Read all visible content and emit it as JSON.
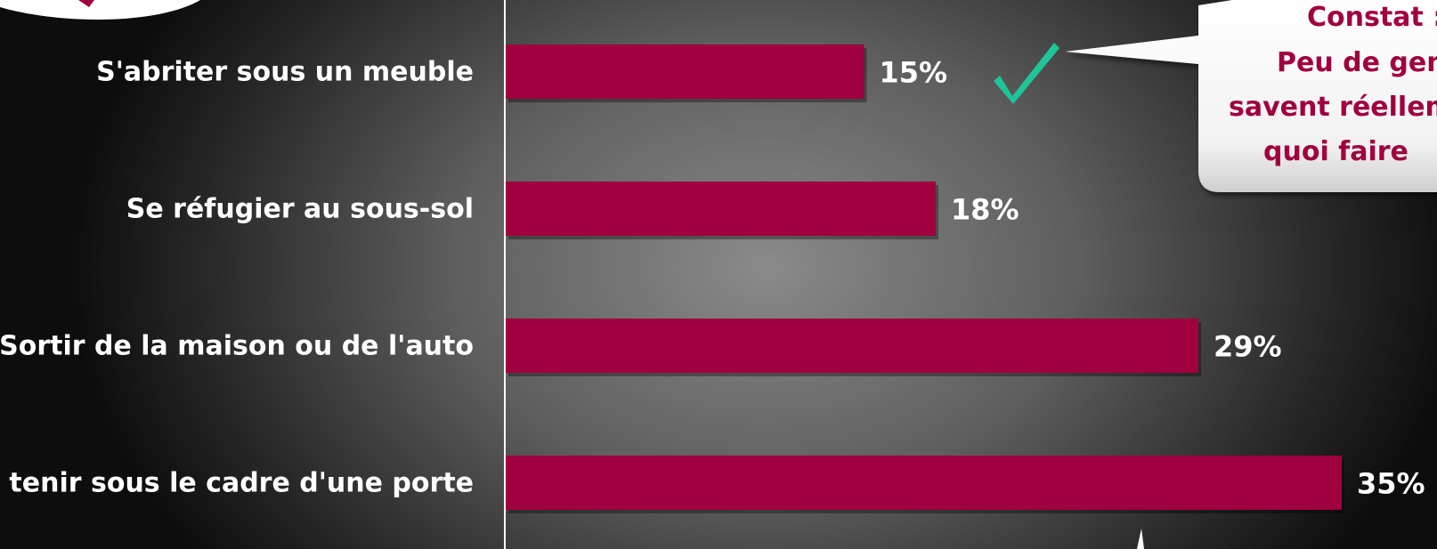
{
  "chart_data": {
    "type": "bar",
    "orientation": "horizontal",
    "categories": [
      "S'abriter sous un meuble",
      "Se réfugier au sous-sol",
      "Sortir de la maison ou de l'auto",
      "Se tenir sous le cadre d'une porte"
    ],
    "values": [
      15,
      18,
      29,
      35
    ],
    "value_labels": [
      "15%",
      "18%",
      "29%",
      "35%"
    ],
    "xlim": [
      0,
      35
    ],
    "grid": false,
    "bar_color": "#a0003f",
    "highlight": {
      "category_index": 0,
      "mark": "check-icon",
      "mark_color": "#1fc49a"
    }
  },
  "callout": {
    "lines": [
      "Constat :",
      "Peu de gen",
      "savent réellem",
      "quoi faire"
    ],
    "text_color": "#a0003f"
  }
}
